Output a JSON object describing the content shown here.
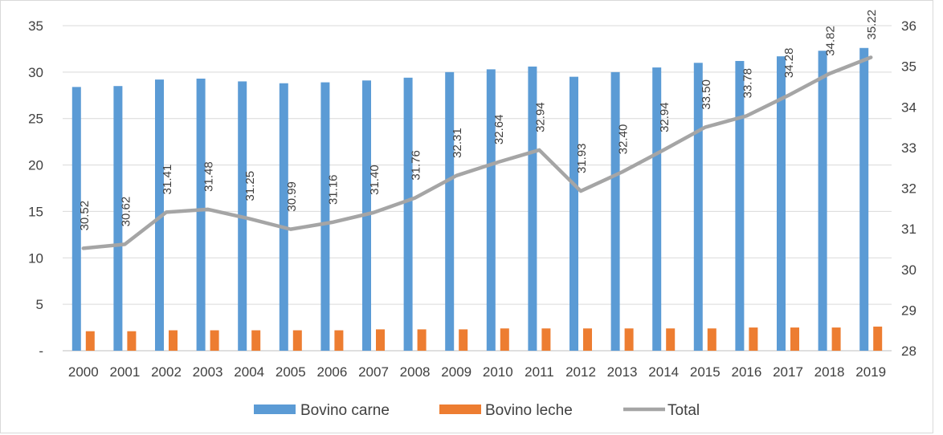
{
  "chart_data": {
    "type": "bar",
    "categories": [
      "2000",
      "2001",
      "2002",
      "2003",
      "2004",
      "2005",
      "2006",
      "2007",
      "2008",
      "2009",
      "2010",
      "2011",
      "2012",
      "2013",
      "2014",
      "2015",
      "2016",
      "2017",
      "2018",
      "2019"
    ],
    "series": [
      {
        "name": "Bovino carne",
        "type": "bar",
        "axis": "left",
        "color": "#5b9bd5",
        "values": [
          28.4,
          28.5,
          29.2,
          29.3,
          29.0,
          28.8,
          28.9,
          29.1,
          29.4,
          30.0,
          30.3,
          30.6,
          29.5,
          30.0,
          30.5,
          31.0,
          31.2,
          31.7,
          32.3,
          32.6
        ]
      },
      {
        "name": "Bovino leche",
        "type": "bar",
        "axis": "left",
        "color": "#ed7d31",
        "values": [
          2.1,
          2.1,
          2.2,
          2.2,
          2.2,
          2.2,
          2.2,
          2.3,
          2.3,
          2.3,
          2.4,
          2.4,
          2.4,
          2.4,
          2.4,
          2.4,
          2.5,
          2.5,
          2.5,
          2.6
        ]
      },
      {
        "name": "Total",
        "type": "line",
        "axis": "right",
        "color": "#a5a5a5",
        "values": [
          30.52,
          30.62,
          31.41,
          31.48,
          31.25,
          30.99,
          31.16,
          31.4,
          31.76,
          32.31,
          32.64,
          32.94,
          31.93,
          32.4,
          32.94,
          33.5,
          33.78,
          34.28,
          34.82,
          35.22
        ],
        "labels": [
          "30.52",
          "30.62",
          "31.41",
          "31.48",
          "31.25",
          "30.99",
          "31.16",
          "31.40",
          "31.76",
          "32.31",
          "32.64",
          "32.94",
          "31.93",
          "32.40",
          "32.94",
          "33.50",
          "33.78",
          "34.28",
          "34.82",
          "35.22"
        ]
      }
    ],
    "y_left": {
      "min": 0,
      "max": 35,
      "step": 5,
      "tick_labels": [
        "-",
        "5",
        "10",
        "15",
        "20",
        "25",
        "30",
        "35"
      ]
    },
    "y_right": {
      "min": 28,
      "max": 36,
      "step": 1,
      "tick_labels": [
        "28",
        "29",
        "30",
        "31",
        "32",
        "33",
        "34",
        "35",
        "36"
      ]
    },
    "grid": true,
    "legend_position": "bottom",
    "title": "",
    "xlabel": "",
    "ylabel": ""
  }
}
